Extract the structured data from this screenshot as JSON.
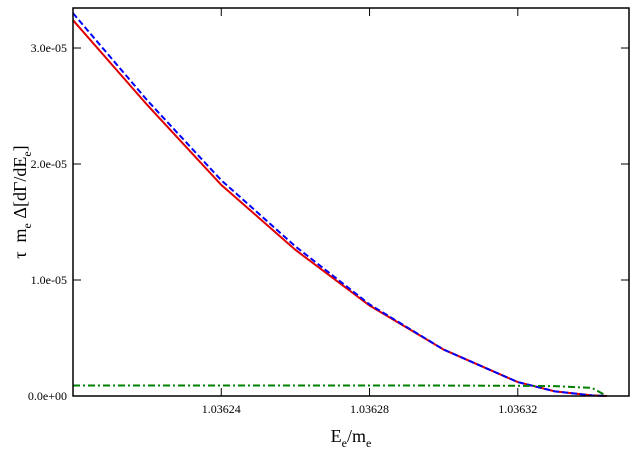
{
  "chart_data": {
    "type": "line",
    "xlabel": [
      {
        "text": "E",
        "sub": false
      },
      {
        "text": "e",
        "sub": true
      },
      {
        "text": "/m",
        "sub": false
      },
      {
        "text": "e",
        "sub": true
      }
    ],
    "ylabel": [
      {
        "text": "τ  m",
        "sub": false
      },
      {
        "text": "e",
        "sub": true
      },
      {
        "text": " Δ[dΓ/dE",
        "sub": false
      },
      {
        "text": "e",
        "sub": true
      },
      {
        "text": "]",
        "sub": false
      }
    ],
    "x": [
      1.0362,
      1.03622,
      1.03624,
      1.03626,
      1.03628,
      1.0363,
      1.03632,
      1.03633,
      1.03634,
      1.036344
    ],
    "series": [
      {
        "color": "#e00000",
        "dash": "solid",
        "values": [
          3.24e-05,
          2.51e-05,
          1.82e-05,
          1.26e-05,
          7.8e-06,
          4e-06,
          1.2e-06,
          4e-07,
          5e-08,
          0
        ]
      },
      {
        "color": "#0000ff",
        "dash": "dashed",
        "values": [
          3.3e-05,
          2.55e-05,
          1.86e-05,
          1.29e-05,
          7.9e-06,
          4e-06,
          1.2e-06,
          4e-07,
          5e-08,
          0
        ]
      },
      {
        "color": "#008000",
        "dash": "dashdot",
        "values": [
          9e-07,
          9e-07,
          9e-07,
          9e-07,
          9e-07,
          9e-07,
          8.8e-07,
          8.5e-07,
          7e-07,
          0
        ]
      }
    ],
    "xlim": [
      1.0362,
      1.03635
    ],
    "xticks": [
      1.03624,
      1.03628,
      1.03632
    ],
    "ylim": [
      0,
      3.345e-05
    ],
    "yticks": [
      {
        "value": 0,
        "label": "0.0e+00"
      },
      {
        "value": 1e-05,
        "label": "1.0e-05"
      },
      {
        "value": 2e-05,
        "label": "2.0e-05"
      },
      {
        "value": 3e-05,
        "label": "3.0e-05"
      }
    ]
  }
}
